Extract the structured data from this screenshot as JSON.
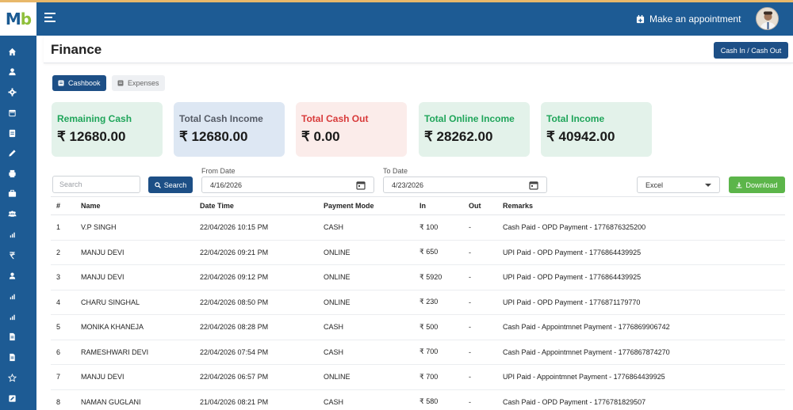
{
  "app": {
    "logo_text_1": "M",
    "logo_text_2": "b"
  },
  "header": {
    "appointment_label": "Make an appointment"
  },
  "page": {
    "title": "Finance",
    "cash_button": "Cash In / Cash Out"
  },
  "tabs": [
    {
      "label": "Cashbook",
      "active": true
    },
    {
      "label": "Expenses",
      "active": false
    }
  ],
  "cards": [
    {
      "label": "Remaining Cash",
      "value": "₹ 12680.00",
      "label_color": "#1fa55a",
      "bg": "#e3f2ea"
    },
    {
      "label": "Total Cash Income",
      "value": "₹ 12680.00",
      "label_color": "#555b66",
      "bg": "#dde7f3"
    },
    {
      "label": "Total Cash Out",
      "value": "₹ 0.00",
      "label_color": "#d83a3a",
      "bg": "#fbecea"
    },
    {
      "label": "Total Online Income",
      "value": "₹ 28262.00",
      "label_color": "#1fa55a",
      "bg": "#e3f2ea"
    },
    {
      "label": "Total Income",
      "value": "₹ 40942.00",
      "label_color": "#1fa55a",
      "bg": "#e3f2ea"
    }
  ],
  "filters": {
    "search_placeholder": "Search",
    "search_button": "Search",
    "from_label": "From Date",
    "from_value": "4/16/2026",
    "to_label": "To Date",
    "to_value": "4/23/2026",
    "export_value": "Excel",
    "download_button": "Download"
  },
  "table": {
    "headers": [
      "#",
      "Name",
      "Date Time",
      "Payment Mode",
      "In",
      "Out",
      "Remarks"
    ],
    "rows": [
      [
        "1",
        "V.P SINGH",
        "22/04/2026 10:15 PM",
        "CASH",
        "₹ 100",
        "-",
        "Cash Paid - OPD Payment - 1776876325200"
      ],
      [
        "2",
        "MANJU DEVI",
        "22/04/2026 09:21 PM",
        "ONLINE",
        "₹ 650",
        "-",
        "UPI Paid - OPD Payment - 1776864439925"
      ],
      [
        "3",
        "MANJU DEVI",
        "22/04/2026 09:12 PM",
        "ONLINE",
        "₹ 5920",
        "-",
        "UPI Paid - OPD Payment - 1776864439925"
      ],
      [
        "4",
        "CHARU SINGHAL",
        "22/04/2026 08:50 PM",
        "ONLINE",
        "₹ 230",
        "-",
        "UPI Paid - OPD Payment - 1776871179770"
      ],
      [
        "5",
        "MONIKA KHANEJA",
        "22/04/2026 08:28 PM",
        "CASH",
        "₹ 500",
        "-",
        "Cash Paid - Appointmnet Payment - 1776869906742"
      ],
      [
        "6",
        "RAMESHWARI DEVI",
        "22/04/2026 07:54 PM",
        "CASH",
        "₹ 700",
        "-",
        "Cash Paid - Appointmnet Payment - 1776867874270"
      ],
      [
        "7",
        "MANJU DEVI",
        "22/04/2026 06:57 PM",
        "ONLINE",
        "₹ 700",
        "-",
        "UPI Paid - Appointmnet Payment - 1776864439925"
      ],
      [
        "8",
        "NAMAN GUGLANI",
        "21/04/2026 08:21 PM",
        "CASH",
        "₹ 580",
        "-",
        "Cash Paid - OPD Payment - 1776781829507"
      ]
    ]
  },
  "sidebar": {
    "icons": [
      "home-icon",
      "user-icon",
      "gear-icon",
      "calendar-icon",
      "document-icon",
      "pen-icon",
      "printer-icon",
      "briefcase-icon",
      "users-icon",
      "bar-chart-icon",
      "rupee-icon",
      "person-icon",
      "bar-chart-icon",
      "bar-chart-icon",
      "file-icon",
      "file-icon",
      "star-icon",
      "edit-icon"
    ]
  }
}
